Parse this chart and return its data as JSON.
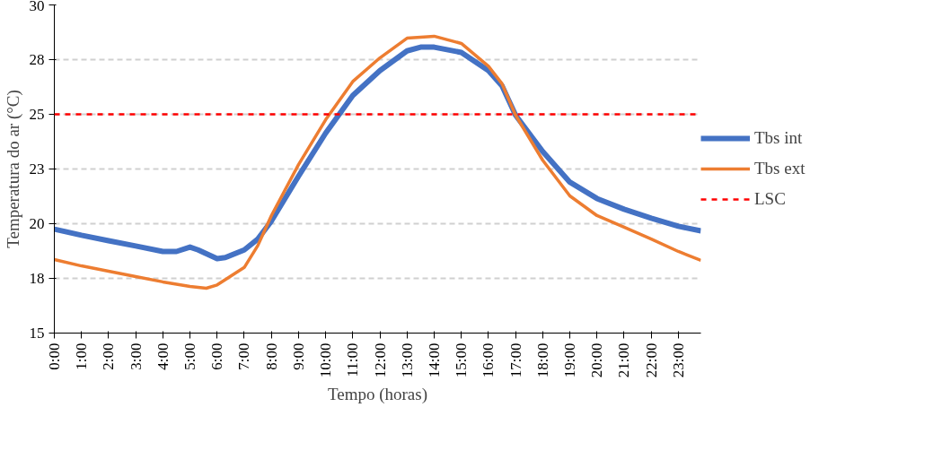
{
  "chart_data": {
    "type": "line",
    "xlabel": "Tempo (horas)",
    "ylabel": "Temperatura do ar (°C)",
    "xlim": [
      0,
      23.83
    ],
    "xticks": [
      {
        "value": 0,
        "label": "0:00"
      },
      {
        "value": 1,
        "label": "1:00"
      },
      {
        "value": 2,
        "label": "2:00"
      },
      {
        "value": 3,
        "label": "3:00"
      },
      {
        "value": 4,
        "label": "4:00"
      },
      {
        "value": 5,
        "label": "5:00"
      },
      {
        "value": 6,
        "label": "6:00"
      },
      {
        "value": 7,
        "label": "7:00"
      },
      {
        "value": 8,
        "label": "8:00"
      },
      {
        "value": 9,
        "label": "9:00"
      },
      {
        "value": 10,
        "label": "10:00"
      },
      {
        "value": 11,
        "label": "11:00"
      },
      {
        "value": 12,
        "label": "12:00"
      },
      {
        "value": 13,
        "label": "13:00"
      },
      {
        "value": 14,
        "label": "14:00"
      },
      {
        "value": 15,
        "label": "15:00"
      },
      {
        "value": 16,
        "label": "16:00"
      },
      {
        "value": 17,
        "label": "17:00"
      },
      {
        "value": 18,
        "label": "18:00"
      },
      {
        "value": 19,
        "label": "19:00"
      },
      {
        "value": 20,
        "label": "20:00"
      },
      {
        "value": 21,
        "label": "21:00"
      },
      {
        "value": 22,
        "label": "22:00"
      },
      {
        "value": 23,
        "label": "23:00"
      }
    ],
    "ylim": [
      15,
      30
    ],
    "yticks": [
      15,
      {
        "value": 17.5,
        "label": "18"
      },
      20,
      {
        "value": 22.5,
        "label": "23"
      },
      25,
      {
        "value": 27.5,
        "label": "28"
      },
      30
    ],
    "grid": "y",
    "legend": "right",
    "line_style": "solid",
    "series": [
      {
        "name": "Tbs int",
        "color": "#4472c4",
        "x": [
          0,
          1,
          2,
          3,
          4,
          4.5,
          5,
          5.3,
          6,
          6.3,
          7,
          7.5,
          8,
          9,
          10,
          11,
          12,
          13,
          13.5,
          14,
          15,
          16,
          16.5,
          17,
          18,
          19,
          20,
          21,
          22,
          23,
          23.83
        ],
        "values": [
          19.75,
          19.47,
          19.22,
          18.98,
          18.73,
          18.73,
          18.93,
          18.8,
          18.4,
          18.45,
          18.8,
          19.3,
          20.12,
          22.17,
          24.14,
          25.86,
          27.0,
          27.9,
          28.07,
          28.07,
          27.83,
          27.0,
          26.3,
          24.96,
          23.3,
          21.9,
          21.15,
          20.66,
          20.25,
          19.88,
          19.67
        ]
      },
      {
        "name": "Tbs ext",
        "color": "#ed7d31",
        "x": [
          0,
          1,
          2,
          3,
          4,
          5,
          5.6,
          6,
          7,
          7.5,
          8,
          9,
          10,
          11,
          12,
          13,
          14,
          15,
          16,
          16.5,
          17,
          18,
          19,
          20,
          21,
          22,
          23,
          23.83
        ],
        "values": [
          18.36,
          18.07,
          17.83,
          17.58,
          17.34,
          17.13,
          17.05,
          17.2,
          18.0,
          19.0,
          20.37,
          22.7,
          24.75,
          26.5,
          27.58,
          28.48,
          28.57,
          28.24,
          27.2,
          26.4,
          24.96,
          22.9,
          21.27,
          20.37,
          19.84,
          19.3,
          18.73,
          18.32
        ]
      }
    ],
    "ref_lines": [
      {
        "axis": "y",
        "value": 25,
        "label": "LSC",
        "color": "#ff0000",
        "line_style": "dashed"
      }
    ]
  }
}
